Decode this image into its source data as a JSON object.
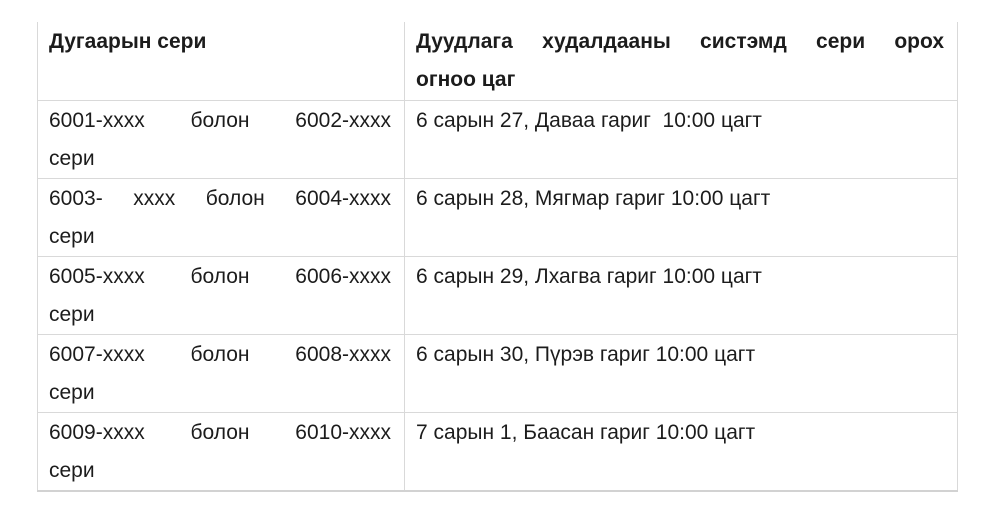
{
  "table": {
    "header": {
      "series_label": "Дугаарын сери",
      "date_label_line1": "Дуудлага худалдааны систэмд сери орох",
      "date_label_line2": "огноо цаг"
    },
    "rows": [
      {
        "series_line1": "6001-xxxx болон 6002-xxxx",
        "series_line2": "сери",
        "date": "6 сарын 27, Даваа гариг  10:00 цагт"
      },
      {
        "series_line1": "6003- xxxx болон 6004-xxxx",
        "series_line2": "сери",
        "date": "6 сарын 28, Мягмар гариг 10:00 цагт"
      },
      {
        "series_line1": "6005-xxxx болон 6006-xxxx",
        "series_line2": "сери",
        "date": "6 сарын 29, Лхагва гариг 10:00 цагт"
      },
      {
        "series_line1": "6007-xxxx болон 6008-xxxx",
        "series_line2": "сери",
        "date": "6 сарын 30, Пүрэв гариг 10:00 цагт"
      },
      {
        "series_line1": "6009-xxxx болон 6010-xxxx",
        "series_line2": "сери",
        "date": "7 сарын 1, Баасан гариг 10:00 цагт"
      }
    ],
    "colors": {
      "text": "#1c1c1c",
      "border": "#d9d9d9",
      "border_bottom": "#d2d2d2",
      "background": "#ffffff"
    }
  }
}
